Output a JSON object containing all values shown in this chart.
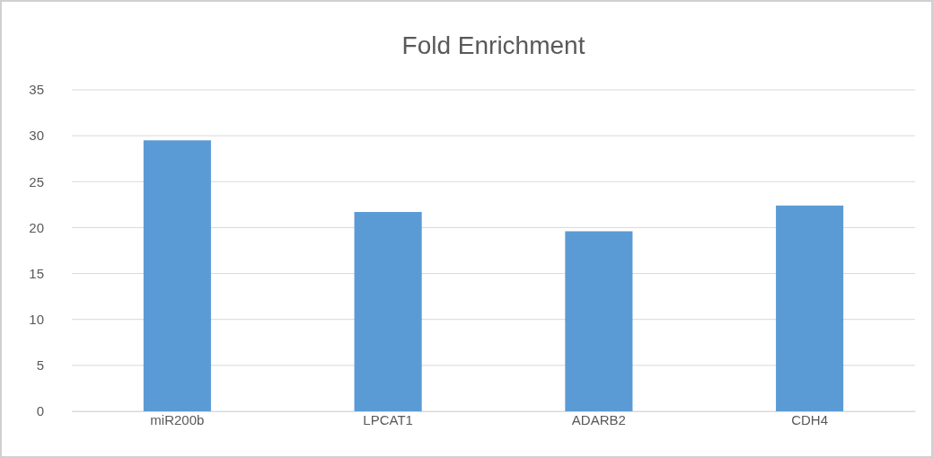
{
  "chart_data": {
    "type": "bar",
    "title": "Fold Enrichment",
    "categories": [
      "miR200b",
      "LPCAT1",
      "ADARB2",
      "CDH4"
    ],
    "values": [
      29.5,
      21.7,
      19.6,
      22.4
    ],
    "color": "#5b9bd5",
    "ylim": [
      0,
      35
    ],
    "yticks": [
      0,
      5,
      10,
      15,
      20,
      25,
      30,
      35
    ],
    "grid": "y"
  }
}
